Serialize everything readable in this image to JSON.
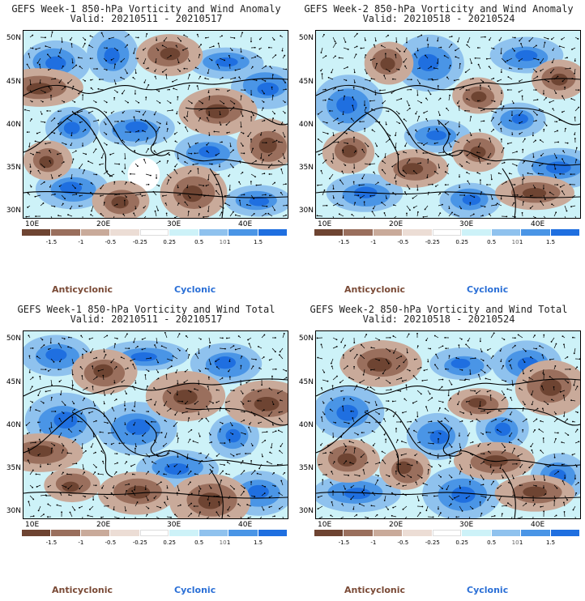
{
  "colors": {
    "brown_dark": "#6e4432",
    "brown_mid": "#9a6f5d",
    "brown_light": "#c9aa9a",
    "tan_pale": "#ecddd5",
    "white": "#ffffff",
    "cyan_pale": "#cdf2f8",
    "blue_light": "#8fc2ee",
    "blue_mid": "#4a95e6",
    "blue_dark": "#1f6fe0"
  },
  "axes": {
    "lat_labels": [
      "50N",
      "45N",
      "40N",
      "35N",
      "30N"
    ],
    "lon_labels": [
      "10E",
      "20E",
      "30E",
      "40E"
    ]
  },
  "colorbar": {
    "labels": [
      "-1.5",
      "-1",
      "-0.5",
      "-0.25",
      "0.25",
      "0.5",
      "1",
      "1.5"
    ],
    "exponent": "10"
  },
  "legend": {
    "anticyclonic": "Anticyclonic",
    "cyclonic": "Cyclonic"
  },
  "panels": [
    {
      "title": "GEFS Week-1 850-hPa Vorticity and Wind Anomaly",
      "valid": "Valid: 20210511 - 20210517"
    },
    {
      "title": "GEFS Week-2 850-hPa Vorticity and Wind Anomaly",
      "valid": "Valid: 20210518 - 20210524"
    },
    {
      "title": "GEFS Week-1 850-hPa Vorticity and Wind Total",
      "valid": "Valid: 20210511 - 20210517"
    },
    {
      "title": "GEFS Week-2 850-hPa Vorticity and Wind Total",
      "valid": "Valid: 20210518 - 20210524"
    }
  ]
}
